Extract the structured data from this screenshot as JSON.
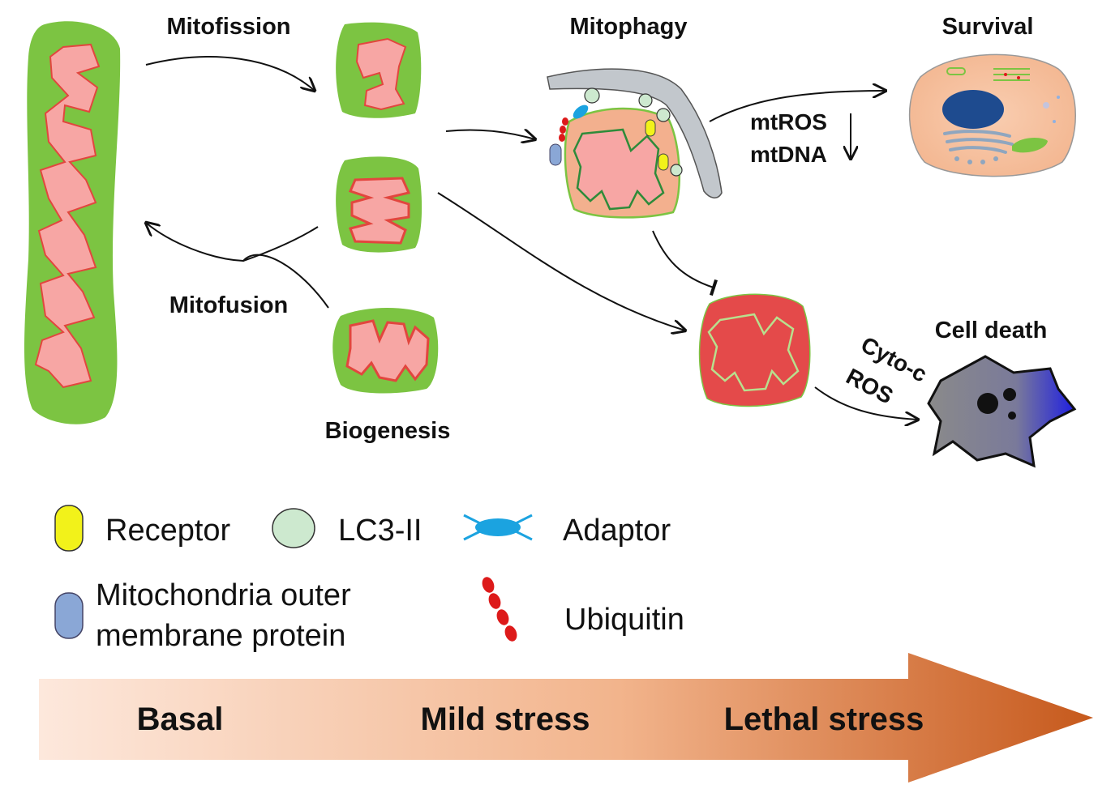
{
  "labels": {
    "mitofission": "Mitofission",
    "mitofusion": "Mitofusion",
    "biogenesis": "Biogenesis",
    "mitophagy": "Mitophagy",
    "survival": "Survival",
    "mtros": "mtROS",
    "mtdna": "mtDNA",
    "cell_death": "Cell death",
    "cyto_c": "Cyto-c",
    "ros": "ROS"
  },
  "legend": {
    "receptor": "Receptor",
    "lc3": "LC3-II",
    "adaptor": "Adaptor",
    "mom_protein_line1": "Mitochondria outer",
    "mom_protein_line2": "membrane protein",
    "ubiquitin": "Ubiquitin"
  },
  "stress_axis": {
    "basal": "Basal",
    "mild": "Mild stress",
    "lethal": "Lethal stress"
  },
  "colors": {
    "mito_outer": "#7cc442",
    "mito_matrix": "#f7a6a4",
    "mito_cristae": "#e2463e",
    "damaged_mito": "#e44a4a",
    "phagophore": "#c2c7cc",
    "receptor": "#f2f21a",
    "lc3": "#cde9cf",
    "adaptor": "#1ba3e0",
    "mom_protein": "#8aa7d6",
    "ubiquitin": "#dd1a1a",
    "cell_death": "#8a8a8a",
    "arrow_gradient_start": "#fde8dc",
    "arrow_gradient_end": "#c6591c"
  }
}
